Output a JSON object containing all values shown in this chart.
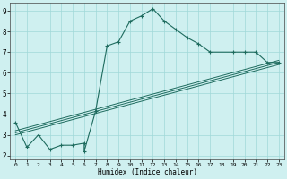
{
  "title": "",
  "xlabel": "Humidex (Indice chaleur)",
  "ylabel": "",
  "bg_color": "#cff0f0",
  "grid_color": "#a0d8d8",
  "line_color": "#1e6b5e",
  "xlim": [
    -0.5,
    23.5
  ],
  "ylim": [
    1.8,
    9.4
  ],
  "xticks": [
    0,
    1,
    2,
    3,
    4,
    5,
    6,
    7,
    8,
    9,
    10,
    11,
    12,
    13,
    14,
    15,
    16,
    17,
    18,
    19,
    20,
    21,
    22,
    23
  ],
  "yticks": [
    2,
    3,
    4,
    5,
    6,
    7,
    8,
    9
  ],
  "line1_x": [
    0,
    1,
    2,
    3,
    4,
    5,
    6,
    6,
    7,
    8,
    9,
    10,
    11,
    12,
    13,
    14,
    15,
    16,
    17,
    19,
    20,
    21,
    22,
    23
  ],
  "line1_y": [
    3.6,
    2.4,
    3.0,
    2.3,
    2.5,
    2.5,
    2.6,
    2.2,
    4.15,
    7.3,
    7.5,
    8.5,
    8.75,
    9.1,
    8.5,
    8.1,
    7.7,
    7.4,
    7.0,
    7.0,
    7.0,
    7.0,
    6.5,
    6.5
  ],
  "line2_x": [
    0,
    23
  ],
  "line2_y": [
    3.0,
    6.4
  ],
  "line3_x": [
    0,
    23
  ],
  "line3_y": [
    3.1,
    6.5
  ],
  "line4_x": [
    0,
    23
  ],
  "line4_y": [
    3.2,
    6.6
  ]
}
